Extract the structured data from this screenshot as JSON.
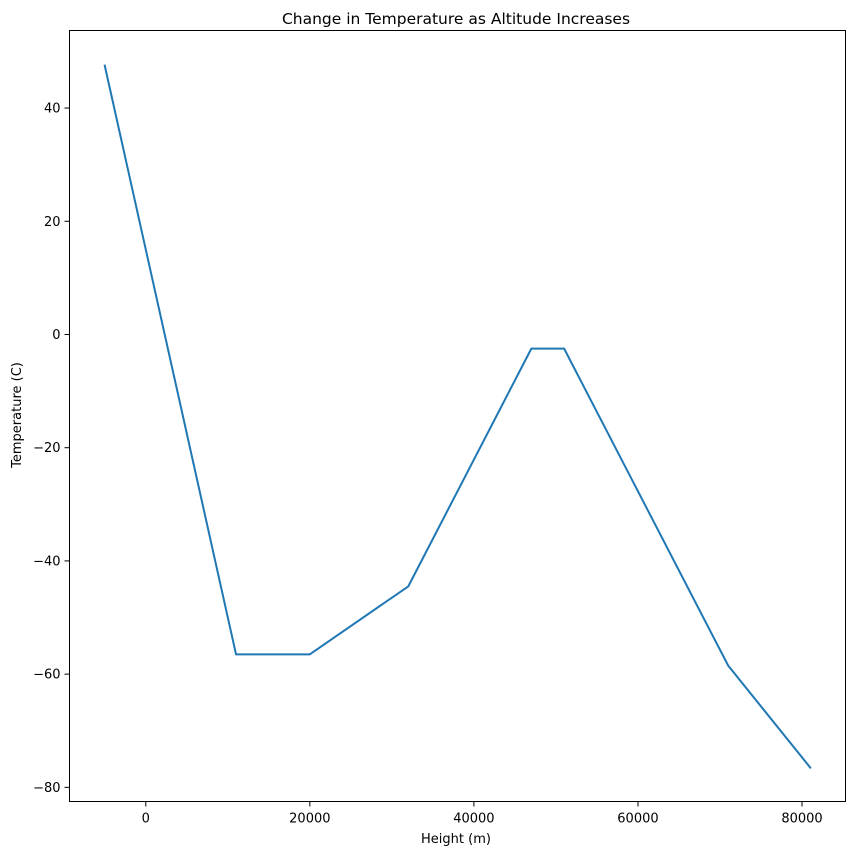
{
  "chart_data": {
    "type": "line",
    "title": "Change in Temperature as Altitude Increases",
    "xlabel": "Height (m)",
    "ylabel": "Temperature (C)",
    "xlim": [
      -9300,
      85300
    ],
    "ylim": [
      -82.5,
      53.7
    ],
    "xticks": [
      0,
      20000,
      40000,
      60000,
      80000
    ],
    "yticks": [
      -80,
      -60,
      -40,
      -20,
      0,
      20,
      40
    ],
    "grid": false,
    "line_color": "#1f77b4",
    "series": [
      {
        "x": [
          -5000,
          11000,
          20000,
          32000,
          47000,
          51000,
          71000,
          81000
        ],
        "y": [
          47.5,
          -56.5,
          -56.5,
          -44.5,
          -2.5,
          -2.5,
          -58.5,
          -76.5
        ]
      }
    ]
  }
}
